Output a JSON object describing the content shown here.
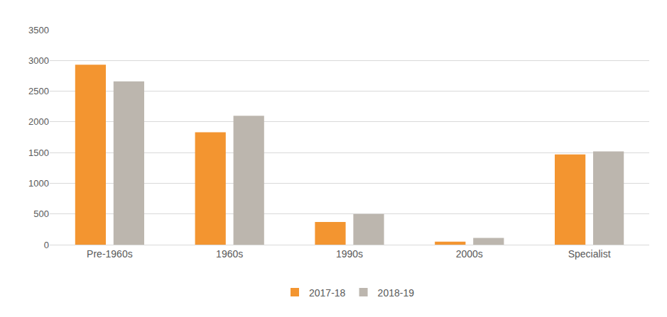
{
  "chart_data": {
    "type": "bar",
    "categories": [
      "Pre-1960s",
      "1960s",
      "1990s",
      "2000s",
      "Specialist"
    ],
    "series": [
      {
        "name": "2017-18",
        "color": "#f39530",
        "values": [
          2930,
          1830,
          370,
          50,
          1470
        ]
      },
      {
        "name": "2018-19",
        "color": "#bcb6ae",
        "values": [
          2660,
          2100,
          500,
          110,
          1520
        ]
      }
    ],
    "ylim": [
      0,
      3500
    ],
    "yticks": [
      0,
      500,
      1000,
      1500,
      2000,
      2500,
      3000,
      3500
    ],
    "grid": true,
    "legend": "bottom"
  }
}
